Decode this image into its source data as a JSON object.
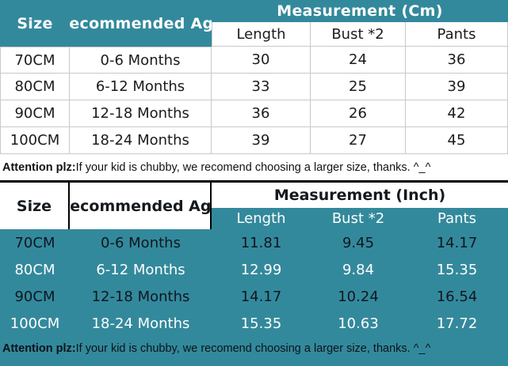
{
  "theme": {
    "teal": "#33899C",
    "grid_line": "#c9c9c9",
    "ink_on_white": "#1b1b1b",
    "ink_on_teal": "#0f1720",
    "white_text": "#fdfdfd"
  },
  "note": {
    "bold": "Attention plz:",
    "text": " If your kid is chubby, we recomend choosing a larger size, thanks. ^_^"
  },
  "cm_table": {
    "title": "Measurement (Cm)",
    "size_header": "Size",
    "age_header": "Recommended Age",
    "columns": [
      "Length",
      "Bust *2",
      "Pants"
    ],
    "rows": [
      {
        "size": "70CM",
        "age": "0-6 Months",
        "length": "30",
        "bust": "24",
        "pants": "36"
      },
      {
        "size": "80CM",
        "age": "6-12 Months",
        "length": "33",
        "bust": "25",
        "pants": "39"
      },
      {
        "size": "90CM",
        "age": "12-18 Months",
        "length": "36",
        "bust": "26",
        "pants": "42"
      },
      {
        "size": "100CM",
        "age": "18-24 Months",
        "length": "39",
        "bust": "27",
        "pants": "45"
      }
    ]
  },
  "inch_table": {
    "title": "Measurement (Inch)",
    "size_header": "Size",
    "age_header": "Recommended Age",
    "columns": [
      "Length",
      "Bust *2",
      "Pants"
    ],
    "rows": [
      {
        "size": "70CM",
        "age": "0-6 Months",
        "length": "11.81",
        "bust": "9.45",
        "pants": "14.17"
      },
      {
        "size": "80CM",
        "age": "6-12 Months",
        "length": "12.99",
        "bust": "9.84",
        "pants": "15.35"
      },
      {
        "size": "90CM",
        "age": "12-18 Months",
        "length": "14.17",
        "bust": "10.24",
        "pants": "16.54"
      },
      {
        "size": "100CM",
        "age": "18-24 Months",
        "length": "15.35",
        "bust": "10.63",
        "pants": "17.72"
      }
    ]
  }
}
